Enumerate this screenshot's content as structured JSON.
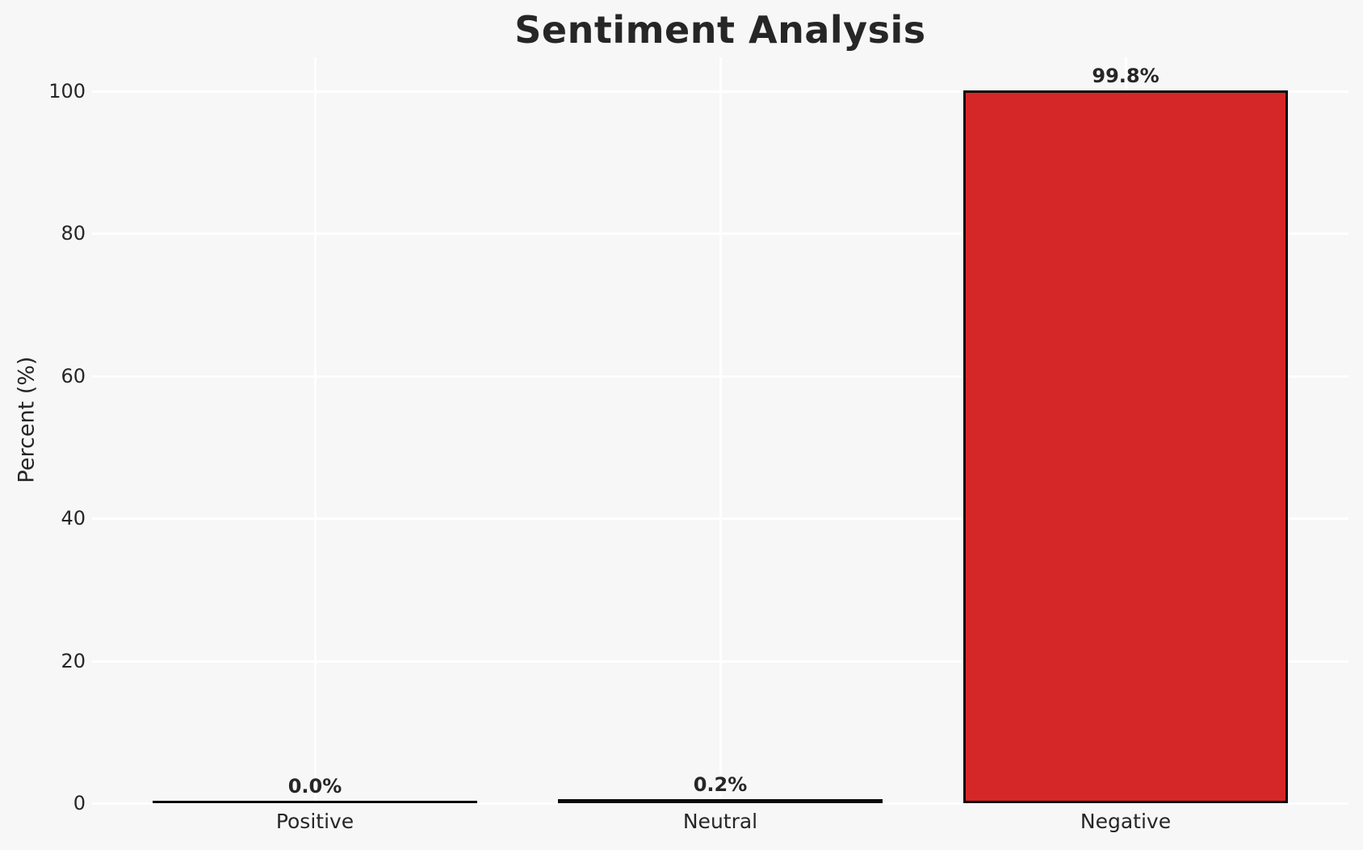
{
  "chart_data": {
    "type": "bar",
    "title": "Sentiment Analysis",
    "xlabel": "",
    "ylabel": "Percent (%)",
    "categories": [
      "Positive",
      "Neutral",
      "Negative"
    ],
    "values": [
      0.0,
      0.2,
      99.8
    ],
    "value_labels": [
      "0.0%",
      "0.2%",
      "99.8%"
    ],
    "yticks": [
      0,
      20,
      40,
      60,
      80,
      100
    ],
    "ylim": [
      0,
      104.8
    ],
    "grid": "horizontal and vertical white gridlines, no dark spines",
    "legend": "none",
    "colors": {
      "figure_background": "#f7f7f7",
      "gridline": "#ffffff",
      "bar_fill": "#d62728",
      "bar_edge": "#0a0a0a",
      "text": "#262626"
    }
  }
}
